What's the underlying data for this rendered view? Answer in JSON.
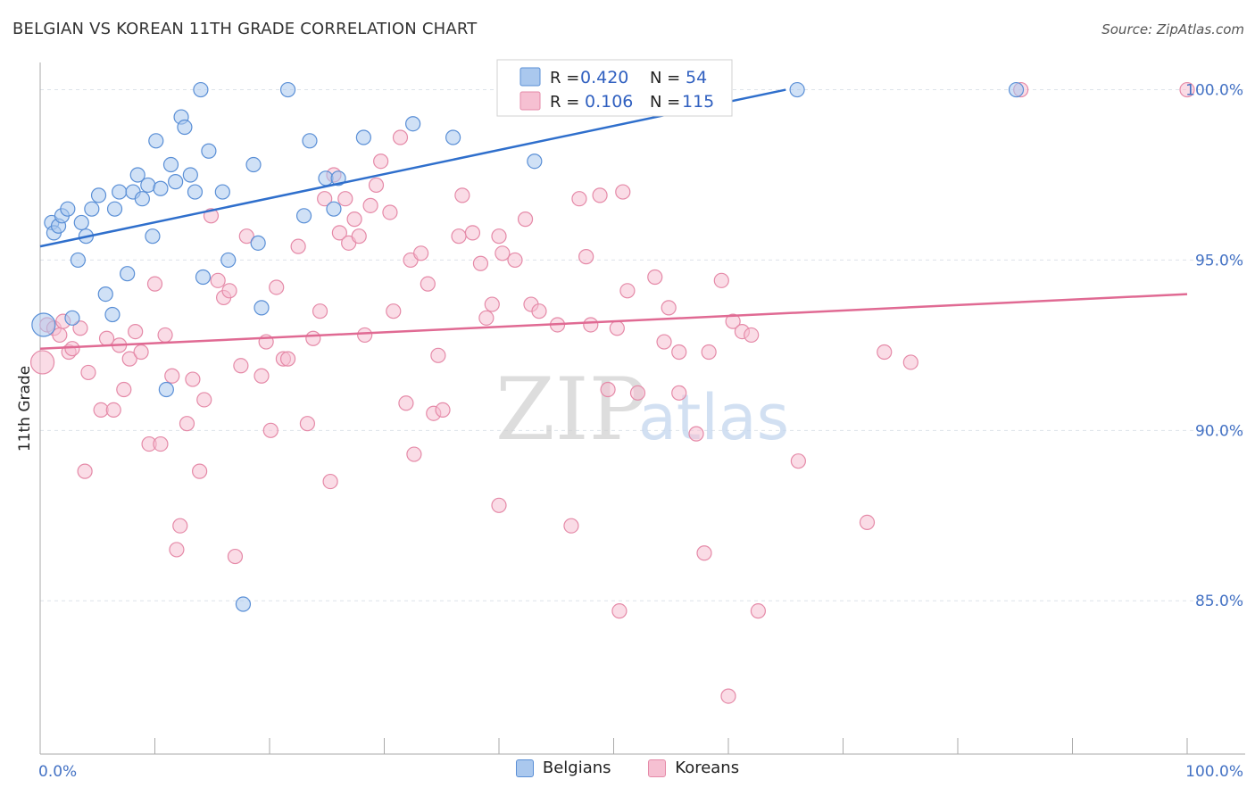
{
  "title": "BELGIAN VS KOREAN 11TH GRADE CORRELATION CHART",
  "source": "Source: ZipAtlas.com",
  "watermark": {
    "zip": "ZIP",
    "atlas": "atlas"
  },
  "legend_stats": [
    {
      "r_label": "R =",
      "r_value": "0.420",
      "n_label": "N =",
      "n_value": "54"
    },
    {
      "r_label": "R =",
      "r_value": "0.106",
      "n_label": "N =",
      "n_value": "115"
    }
  ],
  "bottom_legend": [
    "Belgians",
    "Koreans"
  ],
  "colors": {
    "belgian_fill": "#aac8ee",
    "belgian_stroke": "#5a8fd6",
    "belgian_line": "#2f6fcc",
    "korean_fill": "#f6c0d2",
    "korean_stroke": "#e58aa8",
    "korean_line": "#e06a93",
    "tick_text": "#4472c4",
    "grid": "#dde3ea"
  },
  "chart_data": {
    "type": "scatter",
    "title": "BELGIAN VS KOREAN 11TH GRADE CORRELATION CHART",
    "ylabel": "11th Grade",
    "xlabel": "",
    "xlim": [
      0,
      100
    ],
    "ylim": [
      80.5,
      100.8
    ],
    "x_tick_labels": [
      "0.0%",
      "100.0%"
    ],
    "y_tick_labels": [
      "100.0%",
      "95.0%",
      "90.0%",
      "85.0%"
    ],
    "y_ticks": [
      100,
      95,
      90,
      85
    ],
    "grid": true,
    "series": [
      {
        "name": "Belgians",
        "trend": {
          "x0": 0,
          "y0": 95.4,
          "x1": 65,
          "y1": 100.0
        },
        "points": [
          [
            0.3,
            93.1
          ],
          [
            1.0,
            96.1
          ],
          [
            1.2,
            95.8
          ],
          [
            1.6,
            96.0
          ],
          [
            1.9,
            96.3
          ],
          [
            2.4,
            96.5
          ],
          [
            2.8,
            93.3
          ],
          [
            3.3,
            95.0
          ],
          [
            3.6,
            96.1
          ],
          [
            4.0,
            95.7
          ],
          [
            4.5,
            96.5
          ],
          [
            5.1,
            96.9
          ],
          [
            5.7,
            94.0
          ],
          [
            6.3,
            93.4
          ],
          [
            6.5,
            96.5
          ],
          [
            6.9,
            97.0
          ],
          [
            7.6,
            94.6
          ],
          [
            8.1,
            97.0
          ],
          [
            8.5,
            97.5
          ],
          [
            8.9,
            96.8
          ],
          [
            9.4,
            97.2
          ],
          [
            9.8,
            95.7
          ],
          [
            10.1,
            98.5
          ],
          [
            10.5,
            97.1
          ],
          [
            11.0,
            91.2
          ],
          [
            11.4,
            97.8
          ],
          [
            11.8,
            97.3
          ],
          [
            12.3,
            99.2
          ],
          [
            12.6,
            98.9
          ],
          [
            13.1,
            97.5
          ],
          [
            13.5,
            97.0
          ],
          [
            14.0,
            100.0
          ],
          [
            14.2,
            94.5
          ],
          [
            14.7,
            98.2
          ],
          [
            15.9,
            97.0
          ],
          [
            16.4,
            95.0
          ],
          [
            17.7,
            84.9
          ],
          [
            18.6,
            97.8
          ],
          [
            19.0,
            95.5
          ],
          [
            19.3,
            93.6
          ],
          [
            21.6,
            100.0
          ],
          [
            23.0,
            96.3
          ],
          [
            23.5,
            98.5
          ],
          [
            24.9,
            97.4
          ],
          [
            25.6,
            96.5
          ],
          [
            26.0,
            97.4
          ],
          [
            28.2,
            98.6
          ],
          [
            32.5,
            99.0
          ],
          [
            36.0,
            98.6
          ],
          [
            40.8,
            100.0
          ],
          [
            43.1,
            97.9
          ],
          [
            52.5,
            100.0
          ],
          [
            66.0,
            100.0
          ],
          [
            85.1,
            100.0
          ]
        ]
      },
      {
        "name": "Koreans",
        "trend": {
          "x0": 0,
          "y0": 92.4,
          "x1": 100,
          "y1": 94.0
        },
        "points": [
          [
            0.2,
            92.0
          ],
          [
            0.6,
            93.1
          ],
          [
            1.2,
            93.0
          ],
          [
            1.7,
            92.8
          ],
          [
            2.0,
            93.2
          ],
          [
            2.5,
            92.3
          ],
          [
            2.8,
            92.4
          ],
          [
            3.5,
            93.0
          ],
          [
            3.9,
            88.8
          ],
          [
            4.2,
            91.7
          ],
          [
            5.3,
            90.6
          ],
          [
            5.8,
            92.7
          ],
          [
            6.4,
            90.6
          ],
          [
            6.9,
            92.5
          ],
          [
            7.3,
            91.2
          ],
          [
            7.8,
            92.1
          ],
          [
            8.3,
            92.9
          ],
          [
            8.8,
            92.3
          ],
          [
            9.5,
            89.6
          ],
          [
            10.0,
            94.3
          ],
          [
            10.5,
            89.6
          ],
          [
            10.9,
            92.8
          ],
          [
            11.5,
            91.6
          ],
          [
            11.9,
            86.5
          ],
          [
            12.2,
            87.2
          ],
          [
            12.8,
            90.2
          ],
          [
            13.3,
            91.5
          ],
          [
            13.9,
            88.8
          ],
          [
            14.3,
            90.9
          ],
          [
            14.9,
            96.3
          ],
          [
            15.5,
            94.4
          ],
          [
            16.0,
            93.9
          ],
          [
            16.5,
            94.1
          ],
          [
            17.0,
            86.3
          ],
          [
            17.5,
            91.9
          ],
          [
            18.0,
            95.7
          ],
          [
            19.3,
            91.6
          ],
          [
            19.7,
            92.6
          ],
          [
            20.1,
            90.0
          ],
          [
            20.6,
            94.2
          ],
          [
            21.2,
            92.1
          ],
          [
            21.6,
            92.1
          ],
          [
            22.5,
            95.4
          ],
          [
            23.3,
            90.2
          ],
          [
            23.8,
            92.7
          ],
          [
            24.4,
            93.5
          ],
          [
            24.8,
            96.8
          ],
          [
            25.3,
            88.5
          ],
          [
            25.6,
            97.5
          ],
          [
            26.1,
            95.8
          ],
          [
            26.6,
            96.8
          ],
          [
            26.9,
            95.5
          ],
          [
            27.4,
            96.2
          ],
          [
            27.8,
            95.7
          ],
          [
            28.3,
            92.8
          ],
          [
            28.8,
            96.6
          ],
          [
            29.3,
            97.2
          ],
          [
            29.7,
            97.9
          ],
          [
            30.5,
            96.4
          ],
          [
            30.8,
            93.5
          ],
          [
            31.4,
            98.6
          ],
          [
            31.9,
            90.8
          ],
          [
            32.3,
            95.0
          ],
          [
            32.6,
            89.3
          ],
          [
            33.2,
            95.2
          ],
          [
            33.8,
            94.3
          ],
          [
            34.3,
            90.5
          ],
          [
            34.7,
            92.2
          ],
          [
            35.1,
            90.6
          ],
          [
            36.5,
            95.7
          ],
          [
            36.8,
            96.9
          ],
          [
            37.7,
            95.8
          ],
          [
            38.4,
            94.9
          ],
          [
            38.9,
            93.3
          ],
          [
            39.4,
            93.7
          ],
          [
            40.0,
            95.7
          ],
          [
            40.3,
            95.2
          ],
          [
            41.4,
            95.0
          ],
          [
            42.3,
            96.2
          ],
          [
            42.8,
            93.7
          ],
          [
            43.5,
            93.5
          ],
          [
            45.1,
            93.1
          ],
          [
            46.3,
            87.2
          ],
          [
            47.0,
            96.8
          ],
          [
            47.6,
            95.1
          ],
          [
            48.0,
            93.1
          ],
          [
            48.8,
            96.9
          ],
          [
            49.5,
            91.2
          ],
          [
            50.3,
            93.0
          ],
          [
            50.8,
            97.0
          ],
          [
            51.2,
            94.1
          ],
          [
            52.1,
            91.1
          ],
          [
            53.6,
            94.5
          ],
          [
            54.4,
            92.6
          ],
          [
            54.8,
            93.6
          ],
          [
            55.7,
            92.3
          ],
          [
            57.2,
            89.9
          ],
          [
            57.9,
            86.4
          ],
          [
            58.3,
            92.3
          ],
          [
            59.4,
            94.4
          ],
          [
            60.4,
            93.2
          ],
          [
            61.2,
            92.9
          ],
          [
            62.0,
            92.8
          ],
          [
            62.6,
            84.7
          ],
          [
            66.1,
            89.1
          ],
          [
            72.1,
            87.3
          ],
          [
            73.6,
            92.3
          ],
          [
            75.9,
            92.0
          ],
          [
            85.5,
            100.0
          ],
          [
            100.0,
            100.0
          ],
          [
            50.5,
            84.7
          ],
          [
            60.0,
            82.2
          ],
          [
            53.9,
            100.0
          ],
          [
            40.0,
            87.8
          ],
          [
            55.7,
            91.1
          ]
        ]
      }
    ]
  }
}
